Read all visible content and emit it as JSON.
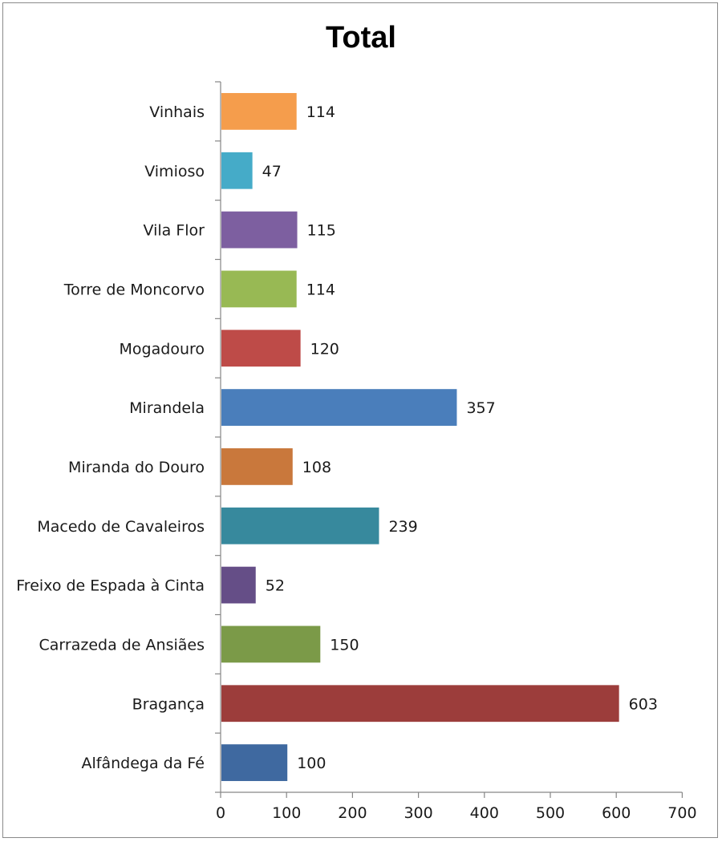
{
  "chart_data": {
    "type": "bar",
    "orientation": "horizontal",
    "title": "Total",
    "categories": [
      "Alfândega da Fé",
      "Bragança",
      "Carrazeda de Ansiães",
      "Freixo de Espada à Cinta",
      "Macedo de Cavaleiros",
      "Miranda do Douro",
      "Mirandela",
      "Mogadouro",
      "Torre de Moncorvo",
      "Vila Flor",
      "Vimioso",
      "Vinhais"
    ],
    "values": [
      100,
      603,
      150,
      52,
      239,
      108,
      357,
      120,
      114,
      115,
      47,
      114
    ],
    "data_labels": [
      "100",
      "603",
      "150",
      "52",
      "239",
      "108",
      "357",
      "120",
      "114",
      "115",
      "47",
      "114"
    ],
    "colors": [
      "#3f69a0",
      "#9c3d3b",
      "#7b9a48",
      "#654e87",
      "#37899d",
      "#c9783c",
      "#4a7ebb",
      "#be4b48",
      "#98b954",
      "#7d5fa0",
      "#45abc8",
      "#f59d4c"
    ],
    "xlim": [
      0,
      700
    ],
    "xticks": [
      0,
      100,
      200,
      300,
      400,
      500,
      600,
      700
    ],
    "tick_labels": [
      "0",
      "100",
      "200",
      "300",
      "400",
      "500",
      "600",
      "700"
    ],
    "xlabel": "",
    "ylabel": "",
    "grid": false,
    "legend": "none"
  }
}
